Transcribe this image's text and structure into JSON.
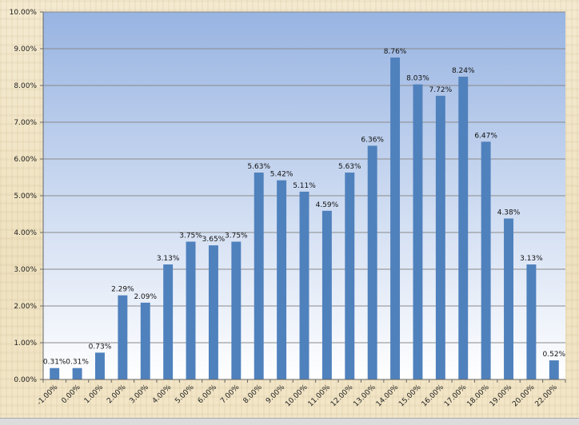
{
  "chart_data": {
    "type": "bar",
    "categories": [
      "-1.00%",
      "0.00%",
      "1.00%",
      "2.00%",
      "3.00%",
      "4.00%",
      "5.00%",
      "6.00%",
      "7.00%",
      "8.00%",
      "9.00%",
      "10.00%",
      "11.00%",
      "12.00%",
      "13.00%",
      "14.00%",
      "15.00%",
      "16.00%",
      "17.00%",
      "18.00%",
      "19.00%",
      "20.00%",
      "22.00%"
    ],
    "values": [
      0.31,
      0.31,
      0.73,
      2.29,
      2.09,
      3.13,
      3.75,
      3.65,
      3.75,
      5.63,
      5.42,
      5.11,
      4.59,
      5.63,
      6.36,
      8.76,
      8.03,
      7.72,
      8.24,
      6.47,
      4.38,
      3.13,
      0.52
    ],
    "data_labels": [
      "0.31%",
      "0.31%",
      "0.73%",
      "2.29%",
      "2.09%",
      "3.13%",
      "3.75%",
      "3.65%",
      "3.75%",
      "5.63%",
      "5.42%",
      "5.11%",
      "4.59%",
      "5.63%",
      "6.36%",
      "8.76%",
      "8.03%",
      "7.72%",
      "8.24%",
      "6.47%",
      "4.38%",
      "3.13%",
      "0.52%"
    ],
    "y_ticks": [
      "0.00%",
      "1.00%",
      "2.00%",
      "3.00%",
      "4.00%",
      "5.00%",
      "6.00%",
      "7.00%",
      "8.00%",
      "9.00%",
      "10.00%"
    ],
    "ylim": [
      0,
      10
    ],
    "grid": true,
    "title": "",
    "xlabel": "",
    "ylabel": "",
    "colors": {
      "bar": "#4f81bd",
      "plot_top": "#98b4e2",
      "plot_bottom": "#ffffff",
      "gridline": "#8a8a8a"
    }
  }
}
